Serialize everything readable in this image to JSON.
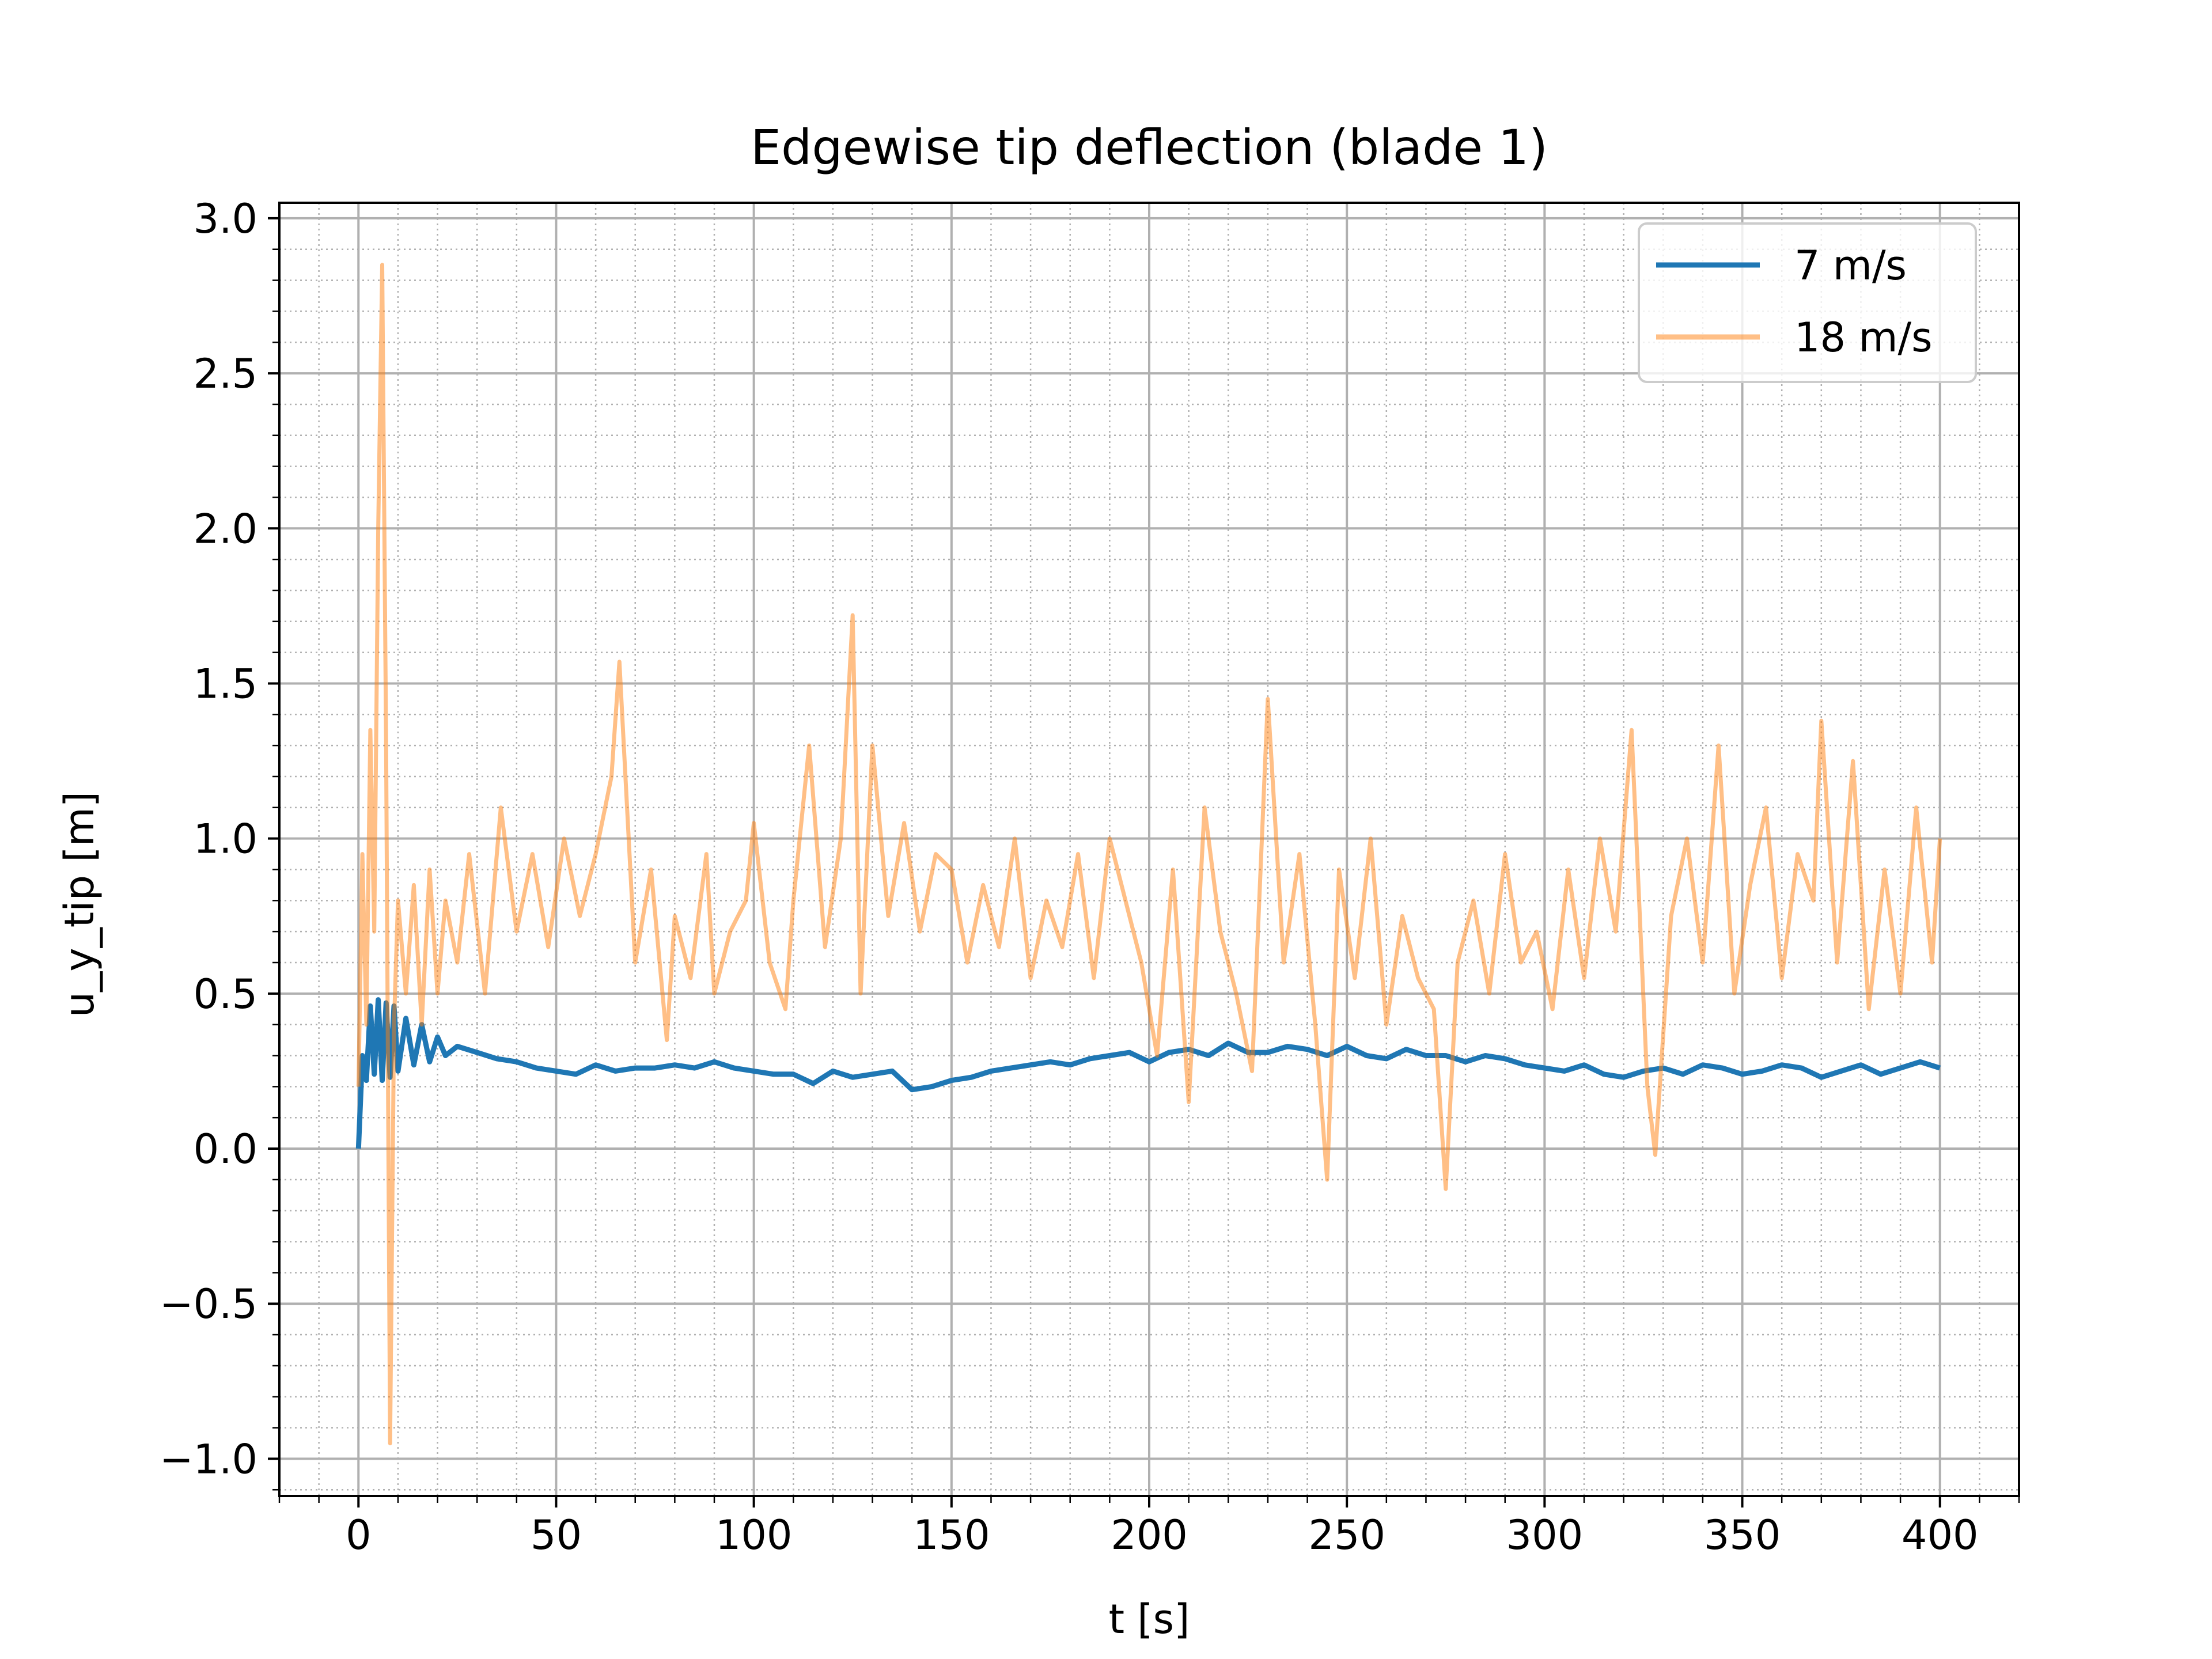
{
  "chart_data": {
    "type": "line",
    "title": "Edgewise tip deflection (blade 1)",
    "xlabel": "t [s]",
    "ylabel": "u_y_tip [m]",
    "xlim": [
      -20,
      420
    ],
    "ylim": [
      -1.12,
      3.05
    ],
    "xticks": [
      0,
      50,
      100,
      150,
      200,
      250,
      300,
      350,
      400
    ],
    "xtick_labels": [
      "0",
      "50",
      "100",
      "150",
      "200",
      "250",
      "300",
      "350",
      "400"
    ],
    "yticks": [
      -1.0,
      -0.5,
      0.0,
      0.5,
      1.0,
      1.5,
      2.0,
      2.5,
      3.0
    ],
    "ytick_labels": [
      "−1.0",
      "−0.5",
      "0.0",
      "0.5",
      "1.0",
      "1.5",
      "2.0",
      "2.5",
      "3.0"
    ],
    "grid": "major and minor",
    "legend_position": "top-right",
    "series": [
      {
        "name": "7 m/s",
        "color": "#1f77b4",
        "opacity": 1.0,
        "x": [
          0,
          1,
          2,
          3,
          4,
          5,
          6,
          7,
          8,
          9,
          10,
          12,
          14,
          16,
          18,
          20,
          22,
          25,
          30,
          35,
          40,
          45,
          50,
          55,
          60,
          65,
          70,
          75,
          80,
          85,
          90,
          95,
          100,
          105,
          110,
          115,
          120,
          125,
          130,
          135,
          140,
          145,
          150,
          155,
          160,
          165,
          170,
          175,
          180,
          185,
          190,
          195,
          200,
          205,
          210,
          215,
          220,
          225,
          230,
          235,
          240,
          245,
          250,
          255,
          260,
          265,
          270,
          275,
          280,
          285,
          290,
          295,
          300,
          305,
          310,
          315,
          320,
          325,
          330,
          335,
          340,
          345,
          350,
          355,
          360,
          365,
          370,
          375,
          380,
          385,
          390,
          395,
          400
        ],
        "y": [
          0.0,
          0.3,
          0.22,
          0.46,
          0.24,
          0.48,
          0.22,
          0.47,
          0.23,
          0.46,
          0.25,
          0.42,
          0.27,
          0.4,
          0.28,
          0.36,
          0.3,
          0.33,
          0.31,
          0.29,
          0.28,
          0.26,
          0.25,
          0.24,
          0.27,
          0.25,
          0.26,
          0.26,
          0.27,
          0.26,
          0.28,
          0.26,
          0.25,
          0.24,
          0.24,
          0.21,
          0.25,
          0.23,
          0.24,
          0.25,
          0.19,
          0.2,
          0.22,
          0.23,
          0.25,
          0.26,
          0.27,
          0.28,
          0.27,
          0.29,
          0.3,
          0.31,
          0.28,
          0.31,
          0.32,
          0.3,
          0.34,
          0.31,
          0.31,
          0.33,
          0.32,
          0.3,
          0.33,
          0.3,
          0.29,
          0.32,
          0.3,
          0.3,
          0.28,
          0.3,
          0.29,
          0.27,
          0.26,
          0.25,
          0.27,
          0.24,
          0.23,
          0.25,
          0.26,
          0.24,
          0.27,
          0.26,
          0.24,
          0.25,
          0.27,
          0.26,
          0.23,
          0.25,
          0.27,
          0.24,
          0.26,
          0.28,
          0.26
        ]
      },
      {
        "name": "18 m/s",
        "color": "#ff7f0e",
        "opacity": 0.5,
        "x": [
          0,
          1,
          2,
          3,
          4,
          5,
          6,
          7,
          8,
          9,
          10,
          12,
          14,
          16,
          18,
          20,
          22,
          25,
          28,
          32,
          36,
          40,
          44,
          48,
          52,
          56,
          60,
          64,
          66,
          70,
          74,
          78,
          80,
          84,
          88,
          90,
          94,
          98,
          100,
          104,
          108,
          110,
          114,
          118,
          122,
          125,
          127,
          130,
          134,
          138,
          142,
          146,
          150,
          154,
          158,
          162,
          166,
          170,
          174,
          178,
          182,
          186,
          190,
          194,
          198,
          202,
          206,
          210,
          214,
          218,
          222,
          226,
          230,
          234,
          238,
          242,
          245,
          248,
          252,
          256,
          260,
          264,
          268,
          272,
          275,
          278,
          282,
          286,
          290,
          294,
          298,
          302,
          306,
          310,
          314,
          318,
          322,
          326,
          328,
          332,
          336,
          340,
          344,
          348,
          352,
          356,
          360,
          364,
          368,
          370,
          374,
          378,
          382,
          386,
          390,
          394,
          398,
          400
        ],
        "y": [
          0.2,
          0.95,
          0.4,
          1.35,
          0.7,
          2.0,
          2.85,
          1.3,
          -0.95,
          0.4,
          0.8,
          0.5,
          0.85,
          0.4,
          0.9,
          0.5,
          0.8,
          0.6,
          0.95,
          0.5,
          1.1,
          0.7,
          0.95,
          0.65,
          1.0,
          0.75,
          0.95,
          1.2,
          1.57,
          0.6,
          0.9,
          0.35,
          0.75,
          0.55,
          0.95,
          0.5,
          0.7,
          0.8,
          1.05,
          0.6,
          0.45,
          0.8,
          1.3,
          0.65,
          1.0,
          1.72,
          0.5,
          1.3,
          0.75,
          1.05,
          0.7,
          0.95,
          0.9,
          0.6,
          0.85,
          0.65,
          1.0,
          0.55,
          0.8,
          0.65,
          0.95,
          0.55,
          1.0,
          0.8,
          0.6,
          0.3,
          0.9,
          0.15,
          1.1,
          0.7,
          0.5,
          0.25,
          1.45,
          0.6,
          0.95,
          0.4,
          -0.1,
          0.9,
          0.55,
          1.0,
          0.4,
          0.75,
          0.55,
          0.45,
          -0.13,
          0.6,
          0.8,
          0.5,
          0.95,
          0.6,
          0.7,
          0.45,
          0.9,
          0.55,
          1.0,
          0.7,
          1.35,
          0.2,
          -0.02,
          0.75,
          1.0,
          0.6,
          1.3,
          0.5,
          0.85,
          1.1,
          0.55,
          0.95,
          0.8,
          1.38,
          0.6,
          1.25,
          0.45,
          0.9,
          0.5,
          1.1,
          0.6,
          1.0
        ]
      }
    ]
  }
}
